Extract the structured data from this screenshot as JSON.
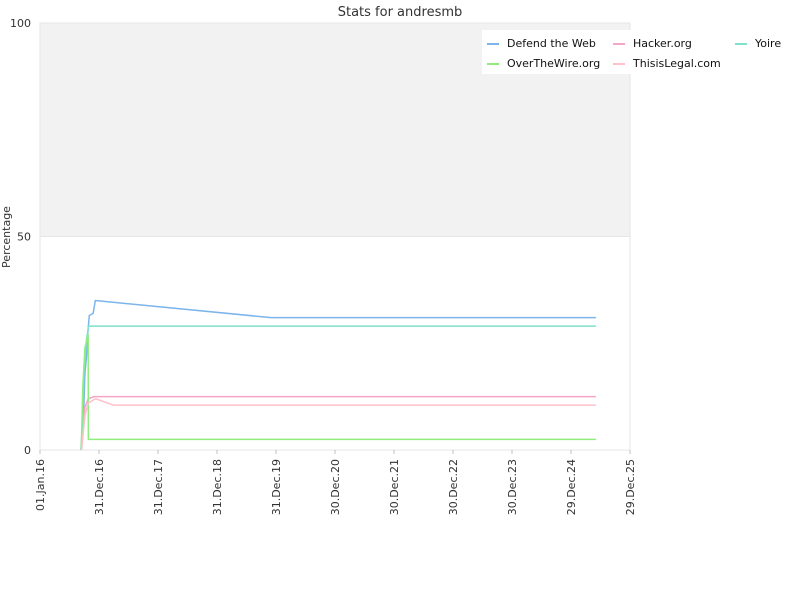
{
  "chart_data": {
    "type": "line",
    "title": "Stats for andresmb",
    "xlabel": "",
    "ylabel": "Percentage",
    "ylim": [
      0,
      100
    ],
    "yticks": [
      "0",
      "50",
      "100"
    ],
    "xlim": [
      "2016-01-01",
      "2025-12-29"
    ],
    "x_tick_labels": [
      "01.Jan.16",
      "31.Dec.16",
      "31.Dec.17",
      "31.Dec.18",
      "31.Dec.19",
      "30.Dec.20",
      "30.Dec.21",
      "30.Dec.22",
      "30.Dec.23",
      "29.Dec.24",
      "29.Dec.25"
    ],
    "x_tick_dates": [
      "2016-01-01",
      "2016-12-31",
      "2017-12-31",
      "2018-12-31",
      "2019-12-31",
      "2020-12-30",
      "2021-12-30",
      "2022-12-30",
      "2023-12-30",
      "2024-12-29",
      "2025-12-29"
    ],
    "plot_background_upper": "#f2f2f2",
    "grid": false,
    "legend_position": "top-right",
    "series": [
      {
        "name": "Defend the Web",
        "color": "#7cb5ec",
        "points": [
          [
            "2016-09-10",
            0
          ],
          [
            "2016-09-18",
            5
          ],
          [
            "2016-09-28",
            10
          ],
          [
            "2016-10-05",
            18
          ],
          [
            "2016-10-15",
            22
          ],
          [
            "2016-10-22",
            27
          ],
          [
            "2016-11-01",
            31.5
          ],
          [
            "2016-11-25",
            32
          ],
          [
            "2016-12-08",
            35
          ],
          [
            "2019-12-01",
            31
          ],
          [
            "2025-06-01",
            31
          ]
        ]
      },
      {
        "name": "Hacker.org",
        "color": "#f4a6c6",
        "points": [
          [
            "2016-09-15",
            0
          ],
          [
            "2016-09-22",
            5
          ],
          [
            "2016-10-05",
            10
          ],
          [
            "2016-10-25",
            12
          ],
          [
            "2016-12-01",
            12.5
          ],
          [
            "2025-06-01",
            12.5
          ]
        ]
      },
      {
        "name": "Yoire",
        "color": "#7fe0cc",
        "points": [
          [
            "2016-09-15",
            1
          ],
          [
            "2016-09-28",
            18
          ],
          [
            "2016-10-15",
            26
          ],
          [
            "2016-10-28",
            29
          ],
          [
            "2025-06-01",
            29
          ]
        ]
      },
      {
        "name": "OverTheWire.org",
        "color": "#90ed7d",
        "points": [
          [
            "2016-09-12",
            0
          ],
          [
            "2016-09-22",
            15
          ],
          [
            "2016-10-05",
            24
          ],
          [
            "2016-10-25",
            27
          ],
          [
            "2016-10-26",
            2.5
          ],
          [
            "2025-06-01",
            2.5
          ]
        ]
      },
      {
        "name": "ThisisLegal.com",
        "color": "#ffc0cb",
        "points": [
          [
            "2016-09-14",
            0
          ],
          [
            "2016-10-05",
            8
          ],
          [
            "2016-10-25",
            11
          ],
          [
            "2016-12-10",
            12
          ],
          [
            "2017-04-01",
            10.5
          ],
          [
            "2025-06-01",
            10.5
          ]
        ]
      }
    ]
  }
}
